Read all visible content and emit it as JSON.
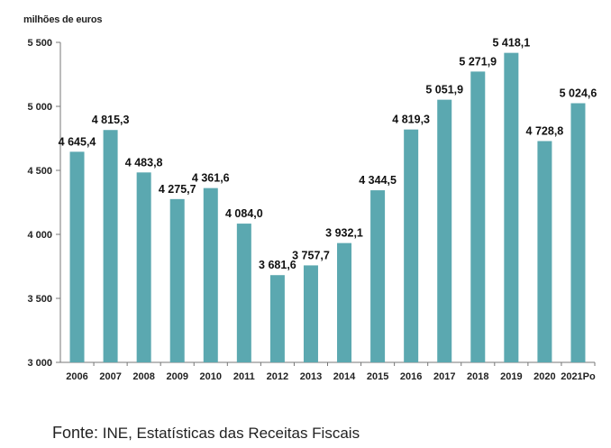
{
  "chart_data": {
    "type": "bar",
    "ylabel": "milhões de euros",
    "categories": [
      "2006",
      "2007",
      "2008",
      "2009",
      "2010",
      "2011",
      "2012",
      "2013",
      "2014",
      "2015",
      "2016",
      "2017",
      "2018",
      "2019",
      "2020",
      "2021Po"
    ],
    "values": [
      4645.4,
      4815.3,
      4483.8,
      4275.7,
      4361.6,
      4084.0,
      3681.6,
      3757.7,
      3932.1,
      4344.5,
      4819.3,
      5051.9,
      5271.9,
      5418.1,
      4728.8,
      5024.6
    ],
    "value_labels": [
      "4 645,4",
      "4 815,3",
      "4 483,8",
      "4 275,7",
      "4 361,6",
      "4 084,0",
      "3 681,6",
      "3 757,7",
      "3 932,1",
      "4 344,5",
      "4 819,3",
      "5 051,9",
      "5 271,9",
      "5 418,1",
      "4 728,8",
      "5 024,6"
    ],
    "yticks": [
      3000,
      3500,
      4000,
      4500,
      5000,
      5500
    ],
    "ytick_labels": [
      "3 000",
      "3 500",
      "4 000",
      "4 500",
      "5 000",
      "5 500"
    ],
    "ylim": [
      3000,
      5500
    ],
    "bar_color": "#5ba8b0",
    "grid": false
  },
  "source": {
    "key": "Fonte:",
    "text": " INE, Estatísticas das Receitas Fiscais"
  }
}
